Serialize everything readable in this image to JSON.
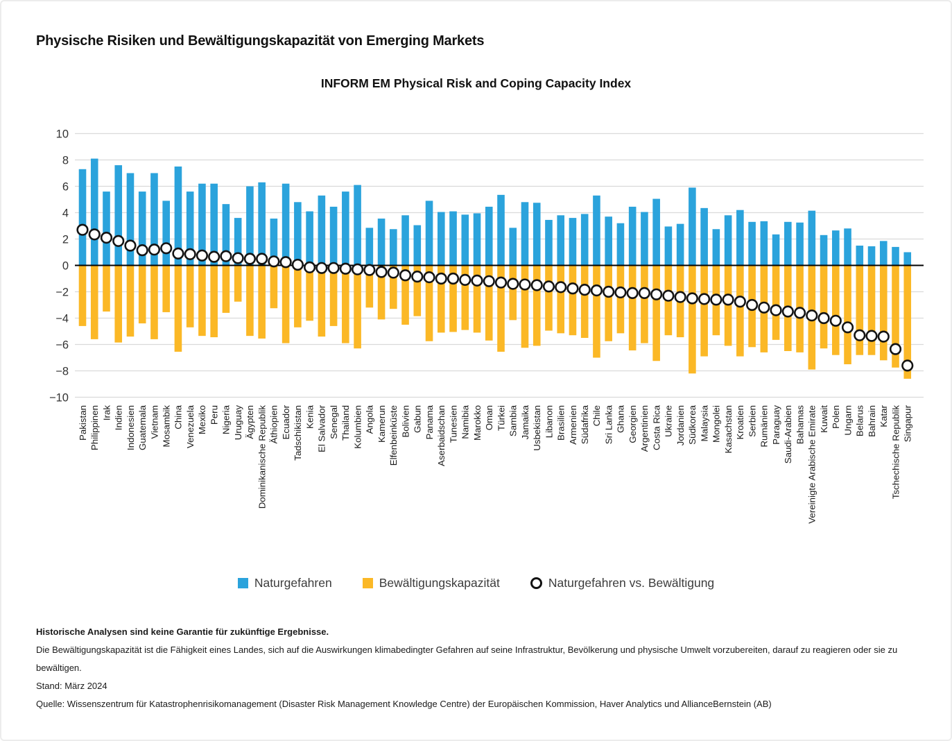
{
  "page": {
    "title": "Physische Risiken und Bewältigungskapazität von Emerging Markets"
  },
  "chart_data": {
    "type": "bar",
    "title": "INFORM EM Physical Risk and Coping Capacity Index",
    "xlabel": "",
    "ylabel": "",
    "ylim": [
      -10,
      10
    ],
    "yticks": [
      10,
      8,
      6,
      4,
      2,
      0,
      -2,
      -4,
      -6,
      -8,
      -10
    ],
    "grid": true,
    "legend_position": "bottom",
    "categories": [
      "Pakistan",
      "Philippinen",
      "Irak",
      "Indien",
      "Indonesien",
      "Guatemala",
      "Vietnam",
      "Mosambik",
      "China",
      "Venezuela",
      "Mexiko",
      "Peru",
      "Nigeria",
      "Uruguay",
      "Ägypten",
      "Dominikanische Republik",
      "Äthiopien",
      "Ecuador",
      "Tadschikistan",
      "Kenia",
      "El Salvador",
      "Senegal",
      "Thailand",
      "Kolumbien",
      "Angola",
      "Kamerun",
      "Elfenbeinküste",
      "Bolivien",
      "Gabun",
      "Panama",
      "Aserbaidschan",
      "Tunesien",
      "Namibia",
      "Marokko",
      "Oman",
      "Türkei",
      "Sambia",
      "Jamaika",
      "Usbekistan",
      "Libanon",
      "Brasilien",
      "Armenien",
      "Südafrika",
      "Chile",
      "Sri Lanka",
      "Ghana",
      "Georgien",
      "Argentinien",
      "Costa Rica",
      "Ukraine",
      "Jordanien",
      "Südkorea",
      "Malaysia",
      "Mongolei",
      "Kasachstan",
      "Kroatien",
      "Serbien",
      "Rumänien",
      "Paraguay",
      "Saudi-Arabien",
      "Bahamas",
      "Vereinigte Arabische Emirate",
      "Kuwait",
      "Polen",
      "Ungarn",
      "Belarus",
      "Bahrain",
      "Katar",
      "Tschechische Republik",
      "Singapur"
    ],
    "series": [
      {
        "name": "Naturgefahren",
        "color": "#2BA3DC",
        "style": "bar",
        "values": [
          7.3,
          8.1,
          5.6,
          7.6,
          7.0,
          5.6,
          7.0,
          4.9,
          7.5,
          5.6,
          6.2,
          6.2,
          4.65,
          3.6,
          6.0,
          6.3,
          3.55,
          6.2,
          4.8,
          4.1,
          5.3,
          4.45,
          5.6,
          6.1,
          2.85,
          3.55,
          2.75,
          3.8,
          3.05,
          4.9,
          4.05,
          4.1,
          3.85,
          3.95,
          4.45,
          5.35,
          2.85,
          4.8,
          4.75,
          3.45,
          3.8,
          3.6,
          3.9,
          5.3,
          3.7,
          3.2,
          4.45,
          4.05,
          5.05,
          2.95,
          3.15,
          5.9,
          4.35,
          2.75,
          3.8,
          4.2,
          3.3,
          3.35,
          2.35,
          3.3,
          3.25,
          4.15,
          2.3,
          2.65,
          2.8,
          1.5,
          1.45,
          1.85,
          1.4,
          1.0
        ]
      },
      {
        "name": "Bewältigungskapazität",
        "color": "#FBB826",
        "style": "bar",
        "values": [
          -4.6,
          -5.6,
          -3.5,
          -5.85,
          -5.4,
          -4.4,
          -5.6,
          -3.55,
          -6.55,
          -4.7,
          -5.35,
          -5.45,
          -3.6,
          -2.75,
          -5.35,
          -5.55,
          -3.25,
          -5.9,
          -4.7,
          -4.2,
          -5.4,
          -4.6,
          -5.9,
          -6.3,
          -3.2,
          -4.1,
          -3.3,
          -4.5,
          -3.85,
          -5.75,
          -5.1,
          -5.05,
          -4.9,
          -5.1,
          -5.7,
          -6.55,
          -4.15,
          -6.25,
          -6.1,
          -4.95,
          -5.15,
          -5.3,
          -5.5,
          -7.0,
          -5.75,
          -5.15,
          -6.45,
          -5.9,
          -7.25,
          -5.3,
          -5.45,
          -8.2,
          -6.9,
          -5.3,
          -6.1,
          -6.9,
          -6.2,
          -6.6,
          -5.65,
          -6.5,
          -6.6,
          -7.9,
          -6.3,
          -6.8,
          -7.5,
          -6.8,
          -6.8,
          -7.2,
          -7.75,
          -8.6
        ]
      },
      {
        "name": "Naturgefahren vs. Bewältigung",
        "color": "#111111",
        "style": "marker",
        "values": [
          2.7,
          2.35,
          2.1,
          1.85,
          1.5,
          1.15,
          1.2,
          1.3,
          0.9,
          0.85,
          0.75,
          0.65,
          0.7,
          0.55,
          0.5,
          0.5,
          0.3,
          0.25,
          0.05,
          -0.15,
          -0.2,
          -0.2,
          -0.25,
          -0.3,
          -0.35,
          -0.5,
          -0.55,
          -0.75,
          -0.85,
          -0.9,
          -1.0,
          -1.0,
          -1.1,
          -1.15,
          -1.2,
          -1.3,
          -1.4,
          -1.45,
          -1.5,
          -1.6,
          -1.65,
          -1.75,
          -1.85,
          -1.9,
          -2.0,
          -2.05,
          -2.1,
          -2.1,
          -2.2,
          -2.3,
          -2.4,
          -2.5,
          -2.55,
          -2.6,
          -2.6,
          -2.75,
          -3.0,
          -3.2,
          -3.4,
          -3.5,
          -3.6,
          -3.8,
          -4.0,
          -4.2,
          -4.7,
          -5.3,
          -5.35,
          -5.4,
          -6.35,
          -7.6
        ]
      }
    ]
  },
  "footer": {
    "disclaimer": "Historische Analysen sind keine Garantie für zukünftige Ergebnisse.",
    "definition": "Die Bewältigungskapazität ist die Fähigkeit eines Landes, sich auf die Auswirkungen klimabedingter Gefahren auf seine Infrastruktur, Bevölkerung und physische Umwelt vorzubereiten, darauf zu reagieren oder sie zu bewältigen.",
    "as_of": "Stand: März 2024",
    "source": "Quelle: Wissenszentrum für Katastrophenrisikomanagement (Disaster Risk Management Knowledge Centre) der Europäischen Kommission, Haver Analytics und AllianceBernstein (AB)"
  }
}
